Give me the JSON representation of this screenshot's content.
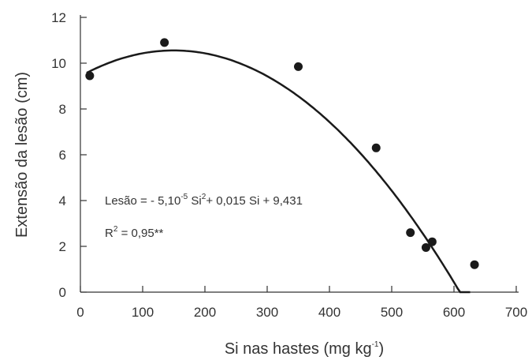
{
  "chart_data": {
    "type": "scatter",
    "xlabel_main": "Si nas hastes (mg kg",
    "xlabel_sup": "-1",
    "xlabel_end": ")",
    "ylabel": "Extensão da lesão (cm)",
    "xlim": [
      0,
      700
    ],
    "ylim": [
      0,
      12
    ],
    "xticks": [
      0,
      100,
      200,
      300,
      400,
      500,
      600,
      700
    ],
    "yticks": [
      0,
      2,
      4,
      6,
      8,
      10,
      12
    ],
    "grid": false,
    "points": [
      {
        "x": 15,
        "y": 9.45
      },
      {
        "x": 135,
        "y": 10.9
      },
      {
        "x": 350,
        "y": 9.85
      },
      {
        "x": 475,
        "y": 6.3
      },
      {
        "x": 530,
        "y": 2.6
      },
      {
        "x": 555,
        "y": 1.95
      },
      {
        "x": 565,
        "y": 2.2
      },
      {
        "x": 633,
        "y": 1.2
      }
    ],
    "fit": {
      "equation_prefix": "Lesão = - 5,10",
      "equation_exp": "-5",
      "equation_si": " Si",
      "equation_si_exp": "2",
      "equation_rest": "+ 0,015 Si + 9,431",
      "r2_label": "R",
      "r2_exp": "2",
      "r2_value": " = 0,95**"
    }
  }
}
